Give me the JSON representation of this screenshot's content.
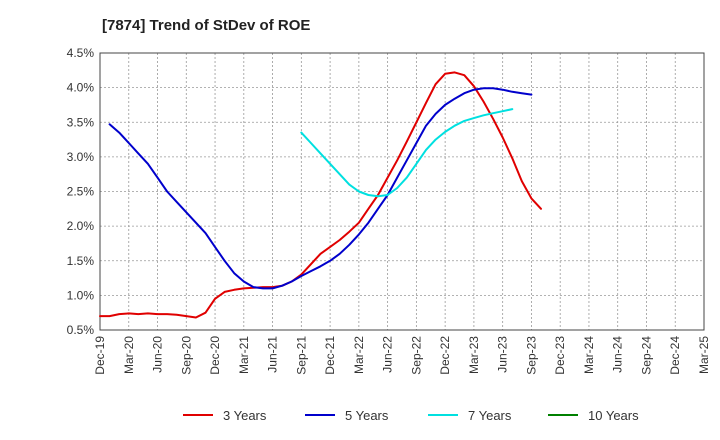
{
  "chart_data": {
    "type": "line",
    "title": "[7874]  Trend of StDev of ROE",
    "xlabel": "",
    "ylabel": "",
    "x_ticks": [
      "Dec-19",
      "Mar-20",
      "Jun-20",
      "Sep-20",
      "Dec-20",
      "Mar-21",
      "Jun-21",
      "Sep-21",
      "Dec-21",
      "Mar-22",
      "Jun-22",
      "Sep-22",
      "Dec-22",
      "Mar-23",
      "Jun-23",
      "Sep-23",
      "Dec-23",
      "Mar-24",
      "Jun-24",
      "Sep-24",
      "Dec-24",
      "Mar-25"
    ],
    "y_ticks": [
      "0.5%",
      "1.0%",
      "1.5%",
      "2.0%",
      "2.5%",
      "3.0%",
      "3.5%",
      "4.0%",
      "4.5%"
    ],
    "ylim": [
      0.5,
      4.5
    ],
    "grid": true,
    "legend_position": "bottom",
    "series": [
      {
        "name": "3 Years",
        "color": "#e00000",
        "points": [
          [
            0,
            0.7
          ],
          [
            1,
            0.7
          ],
          [
            2,
            0.73
          ],
          [
            3,
            0.74
          ],
          [
            4,
            0.73
          ],
          [
            5,
            0.74
          ],
          [
            6,
            0.73
          ],
          [
            7,
            0.73
          ],
          [
            8,
            0.72
          ],
          [
            9,
            0.7
          ],
          [
            10,
            0.68
          ],
          [
            11,
            0.75
          ],
          [
            12,
            0.95
          ],
          [
            13,
            1.05
          ],
          [
            14,
            1.08
          ],
          [
            15,
            1.1
          ],
          [
            16,
            1.11
          ],
          [
            17,
            1.12
          ],
          [
            18,
            1.12
          ],
          [
            19,
            1.14
          ],
          [
            20,
            1.2
          ],
          [
            21,
            1.3
          ],
          [
            22,
            1.45
          ],
          [
            23,
            1.6
          ],
          [
            24,
            1.7
          ],
          [
            25,
            1.8
          ],
          [
            26,
            1.92
          ],
          [
            27,
            2.05
          ],
          [
            28,
            2.25
          ],
          [
            29,
            2.45
          ],
          [
            30,
            2.7
          ],
          [
            31,
            2.95
          ],
          [
            32,
            3.22
          ],
          [
            33,
            3.5
          ],
          [
            34,
            3.78
          ],
          [
            35,
            4.05
          ],
          [
            36,
            4.2
          ],
          [
            37,
            4.22
          ],
          [
            38,
            4.18
          ],
          [
            39,
            4.02
          ],
          [
            40,
            3.8
          ],
          [
            41,
            3.55
          ],
          [
            42,
            3.28
          ],
          [
            43,
            2.98
          ],
          [
            44,
            2.65
          ],
          [
            45,
            2.4
          ],
          [
            46,
            2.25
          ]
        ]
      },
      {
        "name": "5 Years",
        "color": "#0000cc",
        "points": [
          [
            1,
            3.47
          ],
          [
            2,
            3.35
          ],
          [
            3,
            3.2
          ],
          [
            4,
            3.05
          ],
          [
            5,
            2.9
          ],
          [
            6,
            2.7
          ],
          [
            7,
            2.5
          ],
          [
            8,
            2.35
          ],
          [
            9,
            2.2
          ],
          [
            10,
            2.05
          ],
          [
            11,
            1.9
          ],
          [
            12,
            1.7
          ],
          [
            13,
            1.5
          ],
          [
            14,
            1.32
          ],
          [
            15,
            1.2
          ],
          [
            16,
            1.12
          ],
          [
            17,
            1.1
          ],
          [
            18,
            1.1
          ],
          [
            19,
            1.14
          ],
          [
            20,
            1.2
          ],
          [
            21,
            1.28
          ],
          [
            22,
            1.35
          ],
          [
            23,
            1.42
          ],
          [
            24,
            1.5
          ],
          [
            25,
            1.6
          ],
          [
            26,
            1.73
          ],
          [
            27,
            1.88
          ],
          [
            28,
            2.05
          ],
          [
            29,
            2.25
          ],
          [
            30,
            2.45
          ],
          [
            31,
            2.7
          ],
          [
            32,
            2.95
          ],
          [
            33,
            3.2
          ],
          [
            34,
            3.45
          ],
          [
            35,
            3.62
          ],
          [
            36,
            3.75
          ],
          [
            37,
            3.84
          ],
          [
            38,
            3.92
          ],
          [
            39,
            3.97
          ],
          [
            40,
            3.99
          ],
          [
            41,
            3.99
          ],
          [
            42,
            3.97
          ],
          [
            43,
            3.94
          ],
          [
            44,
            3.92
          ],
          [
            45,
            3.9
          ]
        ]
      },
      {
        "name": "7 Years",
        "color": "#00e0e0",
        "points": [
          [
            21,
            3.35
          ],
          [
            22,
            3.2
          ],
          [
            23,
            3.05
          ],
          [
            24,
            2.9
          ],
          [
            25,
            2.75
          ],
          [
            26,
            2.6
          ],
          [
            27,
            2.5
          ],
          [
            28,
            2.45
          ],
          [
            29,
            2.43
          ],
          [
            30,
            2.45
          ],
          [
            31,
            2.55
          ],
          [
            32,
            2.7
          ],
          [
            33,
            2.9
          ],
          [
            34,
            3.1
          ],
          [
            35,
            3.25
          ],
          [
            36,
            3.36
          ],
          [
            37,
            3.45
          ],
          [
            38,
            3.52
          ],
          [
            39,
            3.56
          ],
          [
            40,
            3.6
          ],
          [
            41,
            3.63
          ],
          [
            42,
            3.66
          ],
          [
            43,
            3.69
          ]
        ]
      },
      {
        "name": "10 Years",
        "color": "#008000",
        "points": []
      }
    ]
  }
}
